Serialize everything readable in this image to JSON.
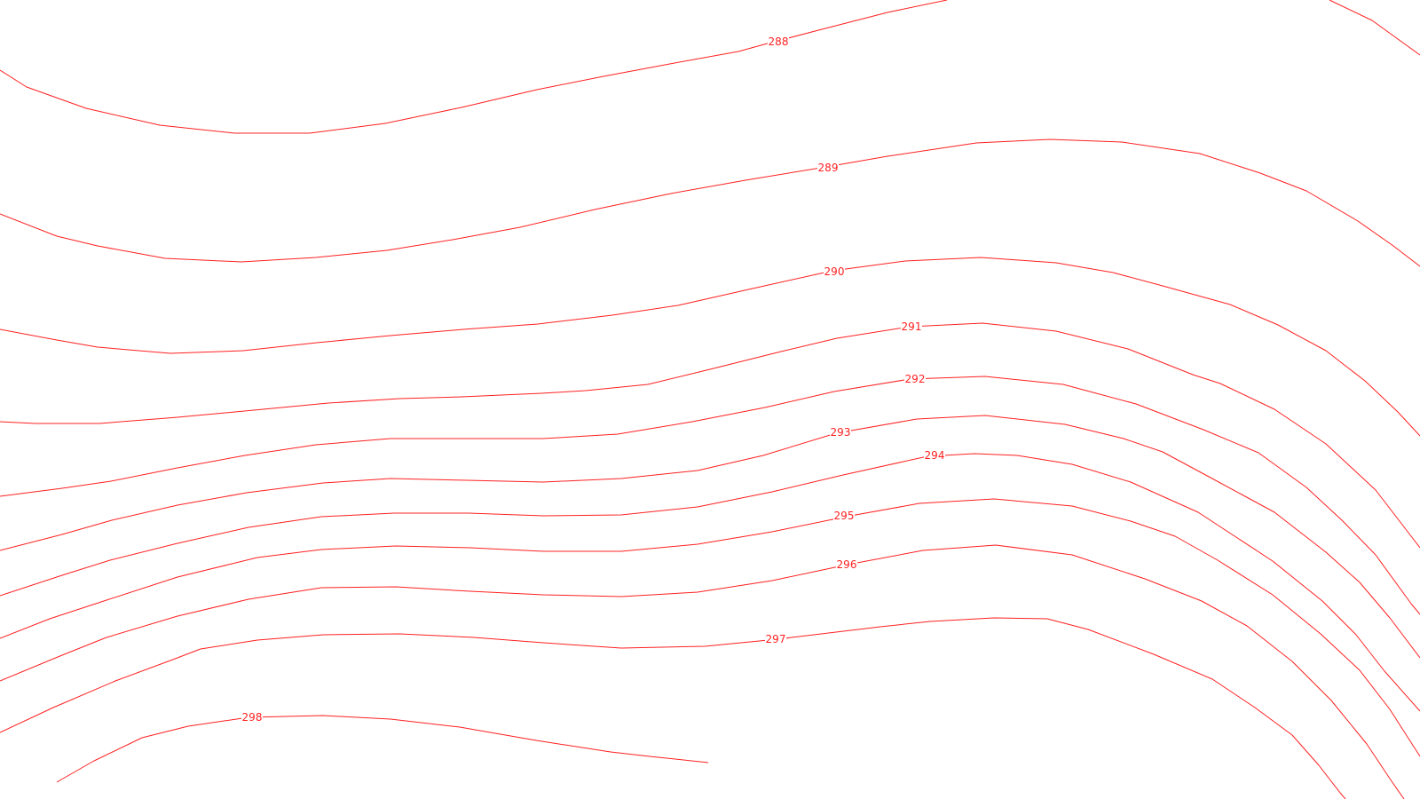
{
  "map": {
    "contour_color": "#ff2020",
    "background_color": "#ffffff",
    "contours": [
      {
        "level": 288,
        "label": "288"
      },
      {
        "level": 289,
        "label": "289"
      },
      {
        "level": 290,
        "label": "290"
      },
      {
        "level": 291,
        "label": "291"
      },
      {
        "level": 292,
        "label": "292"
      },
      {
        "level": 293,
        "label": "293"
      },
      {
        "level": 294,
        "label": "294"
      },
      {
        "level": 295,
        "label": "295"
      },
      {
        "level": 296,
        "label": "296"
      },
      {
        "level": 297,
        "label": "297"
      },
      {
        "level": 298,
        "label": "298"
      }
    ]
  }
}
